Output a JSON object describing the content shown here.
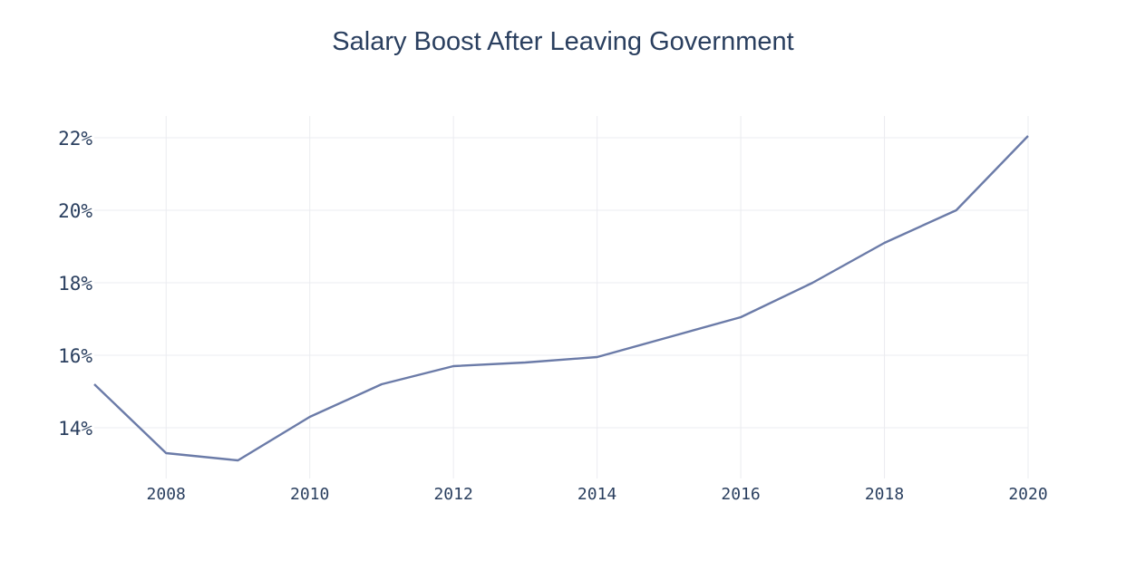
{
  "chart_data": {
    "type": "line",
    "title": "Salary Boost After Leaving Government",
    "xlabel": "",
    "ylabel": "",
    "x": [
      2007,
      2008,
      2009,
      2010,
      2011,
      2012,
      2013,
      2014,
      2015,
      2016,
      2017,
      2018,
      2019,
      2020
    ],
    "series": [
      {
        "values": [
          15.2,
          13.3,
          13.1,
          14.3,
          15.2,
          15.7,
          15.8,
          15.95,
          16.5,
          17.05,
          18.0,
          19.1,
          20.0,
          22.05
        ]
      }
    ],
    "xlim": [
      2007,
      2020
    ],
    "ylim": [
      12.6,
      22.6
    ],
    "x_ticks": [
      2008,
      2010,
      2012,
      2014,
      2016,
      2018,
      2020
    ],
    "x_tick_labels": [
      "2008",
      "2010",
      "2012",
      "2014",
      "2016",
      "2018",
      "2020"
    ],
    "y_ticks": [
      14,
      16,
      18,
      20,
      22
    ],
    "y_tick_labels": [
      "14%",
      "16%",
      "18%",
      "20%",
      "22%"
    ],
    "grid": true,
    "line_color": "#6b7ba8",
    "text_color": "#2a3f5f",
    "grid_color": "#ebecf0"
  }
}
